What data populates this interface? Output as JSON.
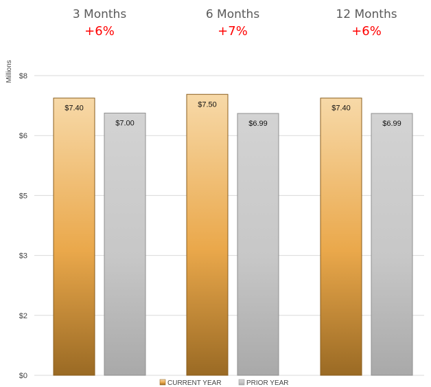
{
  "chart_data": {
    "type": "bar",
    "title": "",
    "xlabel": "",
    "ylabel": "Millions",
    "ylim": [
      0,
      8
    ],
    "grid": true,
    "y_tick_values": [
      0,
      1.6,
      3.2,
      4.8,
      6.4,
      8
    ],
    "y_tick_labels": [
      "$0",
      "$2",
      "$3",
      "$5",
      "$6",
      "$8"
    ],
    "categories": [
      "3 Months",
      "6 Months",
      "12 Months"
    ],
    "growth_labels": [
      "+6%",
      "+7%",
      "+6%"
    ],
    "series": [
      {
        "name": "CURRENT YEAR",
        "values": [
          7.4,
          7.5,
          7.4
        ],
        "data_labels": [
          "$7.40",
          "$7.50",
          "$7.40"
        ]
      },
      {
        "name": "PRIOR YEAR",
        "values": [
          7.0,
          6.99,
          6.99
        ],
        "data_labels": [
          "$7.00",
          "$6.99",
          "$6.99"
        ]
      }
    ],
    "legend_position": "bottom-center"
  },
  "colors": {
    "title_text": "#595959",
    "growth_text": "#ff0000",
    "axis_text": "#444444",
    "gridline": "#d9d9d9",
    "current_year_light": "#f7d9a8",
    "current_year_mid": "#eaa84b",
    "current_year_dark": "#9a6a24",
    "prior_year_light": "#d3d3d3",
    "prior_year_mid": "#c7c7c7",
    "prior_year_dark": "#a9a9a9"
  }
}
